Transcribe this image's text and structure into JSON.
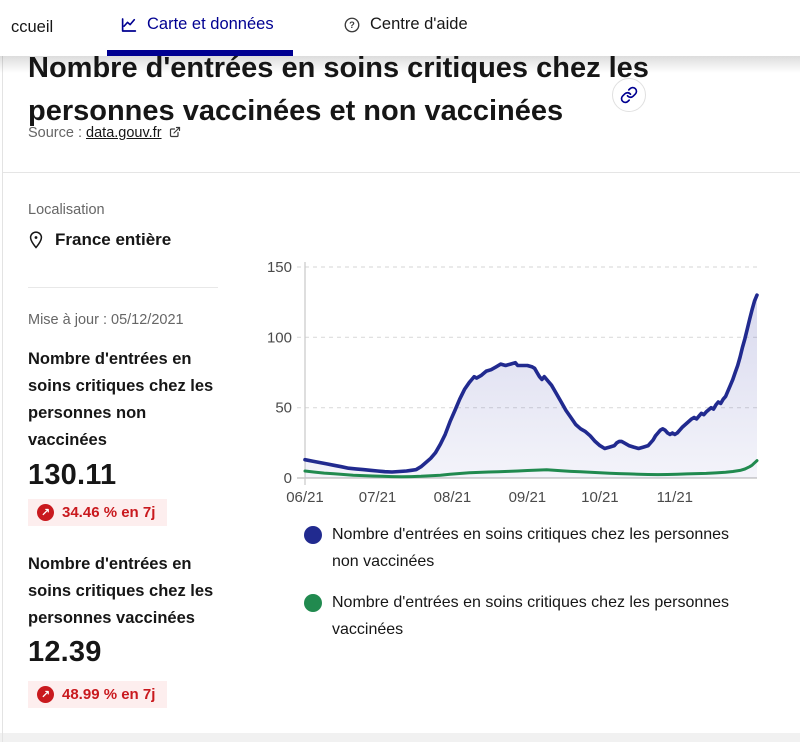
{
  "nav": {
    "home": "ccueil",
    "carte_tab": "Carte et données",
    "aide_tab": "Centre d'aide"
  },
  "header_block": {
    "title_line1": "Nombre d'entrées en soins critiques chez les",
    "title_line2": "personnes vaccinées et non vaccinées",
    "source_label": "Source :",
    "source_link_text": "data.gouv.fr"
  },
  "sidebar": {
    "localisation_label": "Localisation",
    "location": "France entière",
    "updated": "Mise à jour : 05/12/2021",
    "stats": [
      {
        "title": "Nombre d'entrées en\nsoins critiques chez les\npersonnes non\nvaccinées",
        "value": "130.11",
        "delta": "34.46 % en 7j"
      },
      {
        "title": "Nombre d'entrées en\nsoins critiques chez les\npersonnes vaccinées",
        "value": "12.39",
        "delta": "48.99 % en 7j"
      }
    ]
  },
  "legend": {
    "items": [
      {
        "label": "Nombre d'entrées en soins critiques chez les personnes\nnon vaccinées"
      },
      {
        "label": "Nombre d'entrées en soins critiques chez les personnes\nvaccinées"
      }
    ]
  },
  "icons": {
    "tab_chart": "line-chart-icon",
    "help": "question-circle-icon",
    "title_link": "link-chain-icon",
    "source_external": "external-link-icon",
    "location": "map-pin-icon",
    "delta_up": "arrow-up-right-icon"
  },
  "colors": {
    "accent_blue": "#000091",
    "series_blue": "#212a8f",
    "series_green": "#218a4f",
    "alert_red": "#c9191e",
    "badge_bg": "#fdeeee",
    "grid": "#dddddd",
    "axis": "#c9c9c9"
  },
  "chart_data": {
    "type": "area",
    "title": "",
    "xlabel": "",
    "ylabel": "",
    "ylim": [
      0,
      150
    ],
    "y_ticks": [
      0,
      50,
      100,
      150
    ],
    "x_tick_labels": [
      "06/21",
      "07/21",
      "08/21",
      "09/21",
      "10/21",
      "11/21"
    ],
    "x_tick_days": [
      0,
      30,
      61,
      92,
      122,
      153
    ],
    "x_domain_days": [
      0,
      187
    ],
    "grid": "horizontal-dashed",
    "legend_position": "bottom",
    "series": [
      {
        "name": "Nombre d'entrées en soins critiques chez les personnes non vaccinées",
        "color": "#212a8f",
        "fill": true,
        "width": 3.6,
        "points": [
          [
            0,
            13
          ],
          [
            3,
            12
          ],
          [
            6,
            11
          ],
          [
            9,
            10
          ],
          [
            12,
            9
          ],
          [
            15,
            8
          ],
          [
            18,
            7
          ],
          [
            21,
            6.5
          ],
          [
            24,
            6
          ],
          [
            27,
            5.5
          ],
          [
            30,
            5
          ],
          [
            33,
            4.5
          ],
          [
            36,
            4.3
          ],
          [
            39,
            4.6
          ],
          [
            42,
            5
          ],
          [
            44,
            5.5
          ],
          [
            46,
            6
          ],
          [
            48,
            8
          ],
          [
            50,
            11
          ],
          [
            52,
            14
          ],
          [
            54,
            18
          ],
          [
            56,
            24
          ],
          [
            58,
            31
          ],
          [
            60,
            40
          ],
          [
            62,
            48
          ],
          [
            64,
            56
          ],
          [
            66,
            63
          ],
          [
            68,
            68
          ],
          [
            69,
            70
          ],
          [
            70,
            72
          ],
          [
            71,
            71
          ],
          [
            72,
            72
          ],
          [
            73,
            73
          ],
          [
            75,
            76
          ],
          [
            77,
            77
          ],
          [
            79,
            79
          ],
          [
            81,
            81
          ],
          [
            83,
            80
          ],
          [
            85,
            81
          ],
          [
            87,
            82
          ],
          [
            88,
            80
          ],
          [
            90,
            80
          ],
          [
            92,
            80
          ],
          [
            94,
            79
          ],
          [
            95,
            78
          ],
          [
            96,
            75
          ],
          [
            97,
            72
          ],
          [
            98,
            70
          ],
          [
            99,
            72
          ],
          [
            100,
            70
          ],
          [
            102,
            66
          ],
          [
            104,
            60
          ],
          [
            106,
            54
          ],
          [
            108,
            48
          ],
          [
            110,
            43
          ],
          [
            112,
            38
          ],
          [
            114,
            35
          ],
          [
            116,
            33
          ],
          [
            118,
            30
          ],
          [
            120,
            26
          ],
          [
            122,
            23
          ],
          [
            124,
            21
          ],
          [
            126,
            22
          ],
          [
            128,
            23
          ],
          [
            129,
            25
          ],
          [
            130,
            26
          ],
          [
            131,
            26
          ],
          [
            132,
            25
          ],
          [
            133,
            24
          ],
          [
            134,
            23
          ],
          [
            136,
            22
          ],
          [
            138,
            21
          ],
          [
            140,
            22
          ],
          [
            142,
            23
          ],
          [
            144,
            27
          ],
          [
            145,
            30
          ],
          [
            146,
            32
          ],
          [
            147,
            34
          ],
          [
            148,
            35
          ],
          [
            149,
            34
          ],
          [
            150,
            32
          ],
          [
            151,
            31
          ],
          [
            152,
            32
          ],
          [
            153,
            31
          ],
          [
            154,
            32
          ],
          [
            155,
            34
          ],
          [
            156,
            36
          ],
          [
            158,
            39
          ],
          [
            160,
            42
          ],
          [
            161,
            43
          ],
          [
            162,
            42
          ],
          [
            163,
            44
          ],
          [
            164,
            46
          ],
          [
            165,
            45
          ],
          [
            166,
            47
          ],
          [
            168,
            50
          ],
          [
            169,
            49
          ],
          [
            170,
            52
          ],
          [
            171,
            54
          ],
          [
            172,
            53
          ],
          [
            173,
            56
          ],
          [
            174,
            58
          ],
          [
            175,
            62
          ],
          [
            176,
            66
          ],
          [
            177,
            70
          ],
          [
            178,
            75
          ],
          [
            179,
            80
          ],
          [
            180,
            86
          ],
          [
            181,
            93
          ],
          [
            182,
            99
          ],
          [
            183,
            106
          ],
          [
            184,
            113
          ],
          [
            185,
            120
          ],
          [
            186,
            126
          ],
          [
            187,
            130
          ]
        ]
      },
      {
        "name": "Nombre d'entrées en soins critiques chez les personnes vaccinées",
        "color": "#218a4f",
        "fill": false,
        "width": 3,
        "points": [
          [
            0,
            5
          ],
          [
            4,
            4.2
          ],
          [
            8,
            3.5
          ],
          [
            12,
            3
          ],
          [
            16,
            2.5
          ],
          [
            20,
            2
          ],
          [
            24,
            1.7
          ],
          [
            28,
            1.4
          ],
          [
            32,
            1.2
          ],
          [
            36,
            1
          ],
          [
            40,
            0.9
          ],
          [
            44,
            1
          ],
          [
            48,
            1.2
          ],
          [
            52,
            1.6
          ],
          [
            56,
            2
          ],
          [
            60,
            2.6
          ],
          [
            64,
            3.2
          ],
          [
            68,
            3.7
          ],
          [
            72,
            4
          ],
          [
            76,
            4.3
          ],
          [
            80,
            4.5
          ],
          [
            84,
            4.7
          ],
          [
            88,
            5
          ],
          [
            92,
            5.3
          ],
          [
            96,
            5.6
          ],
          [
            100,
            5.8
          ],
          [
            103,
            5.5
          ],
          [
            106,
            5.1
          ],
          [
            110,
            4.7
          ],
          [
            114,
            4.4
          ],
          [
            118,
            4.1
          ],
          [
            122,
            3.8
          ],
          [
            126,
            3.4
          ],
          [
            130,
            3.1
          ],
          [
            134,
            2.9
          ],
          [
            138,
            2.7
          ],
          [
            142,
            2.5
          ],
          [
            146,
            2.4
          ],
          [
            150,
            2.5
          ],
          [
            154,
            2.7
          ],
          [
            158,
            2.9
          ],
          [
            162,
            3.1
          ],
          [
            166,
            3.3
          ],
          [
            170,
            3.6
          ],
          [
            174,
            4.1
          ],
          [
            177,
            4.6
          ],
          [
            180,
            5.4
          ],
          [
            182,
            6.4
          ],
          [
            184,
            8
          ],
          [
            185,
            9.2
          ],
          [
            186,
            10.8
          ],
          [
            187,
            12.4
          ]
        ]
      }
    ]
  }
}
